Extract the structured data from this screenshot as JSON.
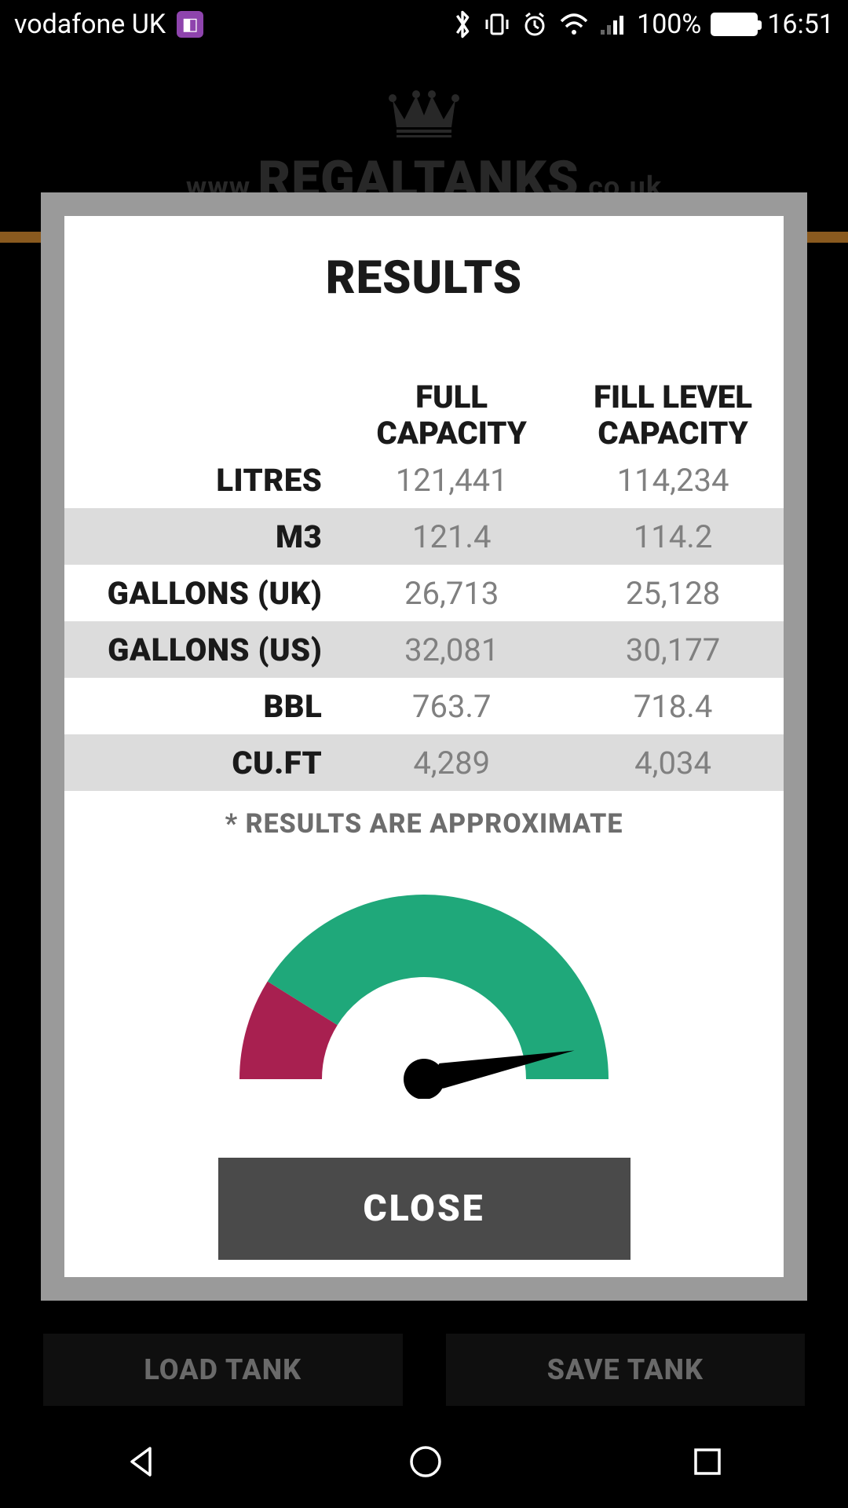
{
  "status_bar": {
    "carrier": "vodafone UK",
    "battery_pct": "100%",
    "time": "16:51"
  },
  "background": {
    "url_prefix": "www.",
    "url_main": "REGALTANKS",
    "url_suffix": ".co.uk",
    "orange_bar_color": "#8a5a1f",
    "load_tank_label": "LOAD TANK",
    "save_tank_label": "SAVE TANK"
  },
  "modal": {
    "title": "RESULTS",
    "columns": [
      "",
      "FULL CAPACITY",
      "FILL LEVEL CAPACITY"
    ],
    "rows": [
      {
        "unit": "LITRES",
        "full": "121,441",
        "fill": "114,234",
        "alt": false
      },
      {
        "unit": "M3",
        "full": "121.4",
        "fill": "114.2",
        "alt": true
      },
      {
        "unit": "GALLONS (UK)",
        "full": "26,713",
        "fill": "25,128",
        "alt": false
      },
      {
        "unit": "GALLONS (US)",
        "full": "32,081",
        "fill": "30,177",
        "alt": true
      },
      {
        "unit": "BBL",
        "full": "763.7",
        "fill": "718.4",
        "alt": false
      },
      {
        "unit": "CU.FT",
        "full": "4,289",
        "fill": "4,034",
        "alt": true
      }
    ],
    "approx_note": "* RESULTS ARE APPROXIMATE",
    "close_label": "CLOSE",
    "colors": {
      "header_text": "#1a1a1a",
      "unit_text": "#1a1a1a",
      "value_text": "#808080",
      "row_alt_bg": "#dcdcdc",
      "close_btn_bg": "#4a4a4a",
      "close_btn_text": "#ffffff",
      "overlay_border": "#9a9a9a"
    }
  },
  "gauge": {
    "fill_ratio": 0.94,
    "green_color": "#1fa87a",
    "red_color": "#a82050",
    "needle_color": "#000000",
    "inner_bg": "#ffffff"
  }
}
